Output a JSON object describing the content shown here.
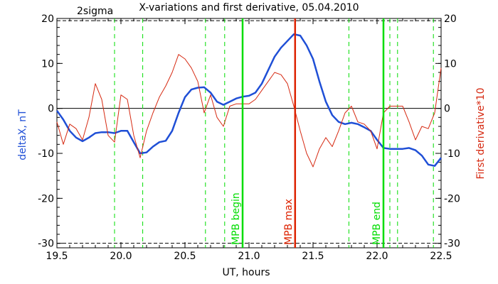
{
  "chart_data": {
    "type": "line",
    "title": "X-variations and first derivative, 05.04.2010",
    "corner_label": "2sigma",
    "xlabel": "UT, hours",
    "ylabel_left": "deltaX, nT",
    "ylabel_right": "First derivative*10",
    "xlim": [
      19.5,
      22.5
    ],
    "ylim": [
      -31,
      20
    ],
    "x_ticks": [
      "19.5",
      "20.0",
      "20.5",
      "21.0",
      "21.5",
      "22.0",
      "22.5"
    ],
    "y_ticks": [
      "20",
      "10",
      "0",
      "-10",
      "-20",
      "-30"
    ],
    "colors": {
      "deltaX": "#1f4fd6",
      "derivative": "#d62a12",
      "green_markers": "#00dd00",
      "red_marker": "#dd2200",
      "sigma_lines": "#000000",
      "zero_line": "#000000"
    },
    "sigma_levels": [
      19.5,
      -30.0
    ],
    "dashed_markers_x": [
      19.95,
      20.17,
      20.66,
      20.81,
      21.78,
      22.1,
      22.16,
      22.44
    ],
    "solid_markers": [
      {
        "x": 20.95,
        "label": "MPB begin",
        "color": "#00dd00"
      },
      {
        "x": 21.36,
        "label": "MPB max",
        "color": "#dd2200"
      },
      {
        "x": 22.05,
        "label": "MPB end",
        "color": "#00dd00"
      }
    ],
    "series": [
      {
        "name": "deltaX",
        "color": "#1f4fd6",
        "x": [
          19.5,
          19.55,
          19.6,
          19.65,
          19.7,
          19.75,
          19.8,
          19.85,
          19.9,
          19.95,
          20.0,
          20.05,
          20.1,
          20.15,
          20.2,
          20.25,
          20.3,
          20.35,
          20.4,
          20.45,
          20.5,
          20.55,
          20.6,
          20.65,
          20.7,
          20.75,
          20.8,
          20.85,
          20.9,
          20.95,
          21.0,
          21.05,
          21.1,
          21.15,
          21.2,
          21.25,
          21.3,
          21.35,
          21.4,
          21.45,
          21.5,
          21.55,
          21.6,
          21.65,
          21.7,
          21.75,
          21.8,
          21.85,
          21.9,
          21.95,
          22.0,
          22.05,
          22.1,
          22.15,
          22.2,
          22.25,
          22.3,
          22.35,
          22.4,
          22.45,
          22.5
        ],
        "values": [
          -0.5,
          -2.5,
          -5,
          -6.5,
          -7.3,
          -6.5,
          -5.5,
          -5.3,
          -5.3,
          -5.5,
          -5,
          -5,
          -7.5,
          -10,
          -9.8,
          -8.5,
          -7.5,
          -7.2,
          -5,
          -1,
          2.5,
          4.2,
          4.6,
          4.7,
          3.5,
          1.5,
          0.8,
          1.5,
          2.2,
          2.6,
          2.8,
          3.5,
          5.5,
          8.5,
          11.5,
          13.5,
          15,
          16.5,
          16.2,
          14,
          11,
          6,
          1.5,
          -1.5,
          -3,
          -3.5,
          -3.2,
          -3.5,
          -4.2,
          -5,
          -7,
          -8.8,
          -9,
          -9,
          -9,
          -8.8,
          -9.3,
          -10.5,
          -12.5,
          -12.8,
          -11
        ]
      },
      {
        "name": "First derivative*10",
        "color": "#d62a12",
        "x": [
          19.5,
          19.55,
          19.6,
          19.65,
          19.7,
          19.75,
          19.8,
          19.85,
          19.9,
          19.95,
          20.0,
          20.05,
          20.1,
          20.15,
          20.2,
          20.25,
          20.3,
          20.35,
          20.4,
          20.45,
          20.5,
          20.55,
          20.6,
          20.65,
          20.7,
          20.75,
          20.8,
          20.85,
          20.9,
          20.95,
          21.0,
          21.05,
          21.1,
          21.15,
          21.2,
          21.25,
          21.3,
          21.35,
          21.4,
          21.45,
          21.5,
          21.55,
          21.6,
          21.65,
          21.7,
          21.75,
          21.8,
          21.85,
          21.9,
          21.95,
          22.0,
          22.05,
          22.1,
          22.15,
          22.2,
          22.25,
          22.3,
          22.35,
          22.4,
          22.45,
          22.5
        ],
        "values": [
          -3,
          -8,
          -3.5,
          -4.5,
          -7,
          -2,
          5.5,
          2,
          -6,
          -7.5,
          3,
          2,
          -6,
          -11,
          -5,
          -1,
          2.5,
          5,
          8,
          12,
          11,
          9,
          6,
          -1,
          3,
          -2,
          -4,
          0.5,
          1,
          1,
          1,
          2,
          4,
          6,
          8,
          7.5,
          5.5,
          0.5,
          -5,
          -10,
          -13,
          -9,
          -6.5,
          -8.5,
          -5,
          -1,
          0.5,
          -3,
          -3.5,
          -5,
          -9,
          -1,
          0.5,
          0.5,
          0.5,
          -3,
          -7,
          -4,
          -4.5,
          -1,
          9
        ]
      }
    ]
  }
}
